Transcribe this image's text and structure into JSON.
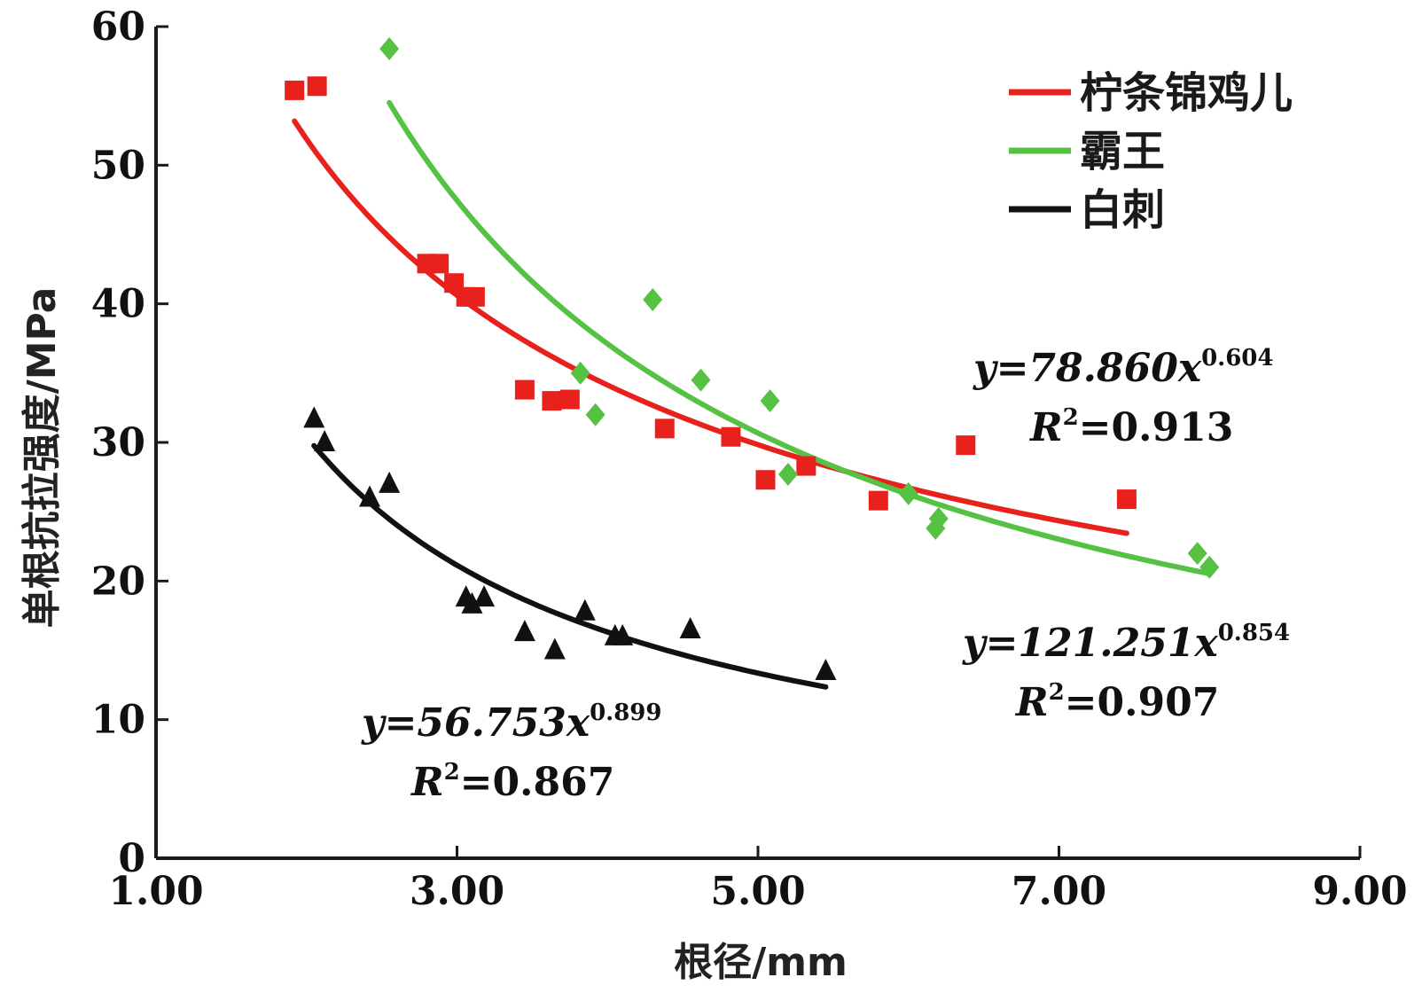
{
  "chart_data": {
    "type": "scatter",
    "xlabel": "根径/mm",
    "ylabel": "单根抗拉强度/MPa",
    "xlim": [
      1.0,
      9.0
    ],
    "ylim": [
      0,
      60
    ],
    "x_ticks": [
      "1.00",
      "3.00",
      "5.00",
      "7.00",
      "9.00"
    ],
    "x_tick_values": [
      1,
      3,
      5,
      7,
      9
    ],
    "y_ticks": [
      "0",
      "10",
      "20",
      "30",
      "40",
      "50",
      "60"
    ],
    "y_tick_values": [
      0,
      10,
      20,
      30,
      40,
      50,
      60
    ],
    "legend_position": "top-right",
    "series": [
      {
        "name": "柠条锦鸡儿",
        "color": "#e8211d",
        "marker": "square",
        "points": [
          [
            1.92,
            55.4
          ],
          [
            2.07,
            55.7
          ],
          [
            2.8,
            42.9
          ],
          [
            2.88,
            42.9
          ],
          [
            2.98,
            41.5
          ],
          [
            3.06,
            40.5
          ],
          [
            3.12,
            40.5
          ],
          [
            3.45,
            33.8
          ],
          [
            3.63,
            33.0
          ],
          [
            3.75,
            33.1
          ],
          [
            4.38,
            31.0
          ],
          [
            4.82,
            30.4
          ],
          [
            5.05,
            27.3
          ],
          [
            5.32,
            28.3
          ],
          [
            5.8,
            25.8
          ],
          [
            6.38,
            29.8
          ],
          [
            7.45,
            25.9
          ]
        ],
        "fit": {
          "a": 78.86,
          "b": -0.604,
          "x_range": [
            1.92,
            7.45
          ]
        },
        "equation": "y=78.860x",
        "exponent": "0.604",
        "r2": "=0.913"
      },
      {
        "name": "霸王",
        "color": "#56c244",
        "marker": "diamond",
        "points": [
          [
            2.55,
            58.4
          ],
          [
            3.82,
            35.0
          ],
          [
            3.92,
            32.0
          ],
          [
            4.3,
            40.3
          ],
          [
            4.62,
            34.5
          ],
          [
            5.08,
            33.0
          ],
          [
            5.2,
            27.7
          ],
          [
            6.0,
            26.3
          ],
          [
            6.18,
            23.8
          ],
          [
            6.2,
            24.5
          ],
          [
            7.92,
            22.0
          ],
          [
            8.0,
            21.0
          ]
        ],
        "fit": {
          "a": 121.251,
          "b": -0.854,
          "x_range": [
            2.55,
            8.0
          ]
        },
        "equation": "y=121.251x",
        "exponent": "0.854",
        "r2": "=0.907"
      },
      {
        "name": "白刺",
        "color": "#111111",
        "marker": "triangle",
        "points": [
          [
            2.05,
            31.7
          ],
          [
            2.12,
            30.0
          ],
          [
            2.42,
            26.0
          ],
          [
            2.55,
            27.0
          ],
          [
            3.06,
            18.8
          ],
          [
            3.1,
            18.3
          ],
          [
            3.18,
            18.8
          ],
          [
            3.45,
            16.3
          ],
          [
            3.65,
            15.0
          ],
          [
            3.85,
            17.8
          ],
          [
            4.05,
            16.0
          ],
          [
            4.1,
            16.0
          ],
          [
            4.55,
            16.5
          ],
          [
            5.45,
            13.5
          ]
        ],
        "fit": {
          "a": 56.753,
          "b": -0.899,
          "x_range": [
            2.05,
            5.45
          ]
        },
        "equation": "y=56.753x",
        "exponent": "0.899",
        "r2": "=0.867"
      }
    ],
    "annotations": {
      "r_symbol": "R",
      "r_power": "2"
    }
  }
}
